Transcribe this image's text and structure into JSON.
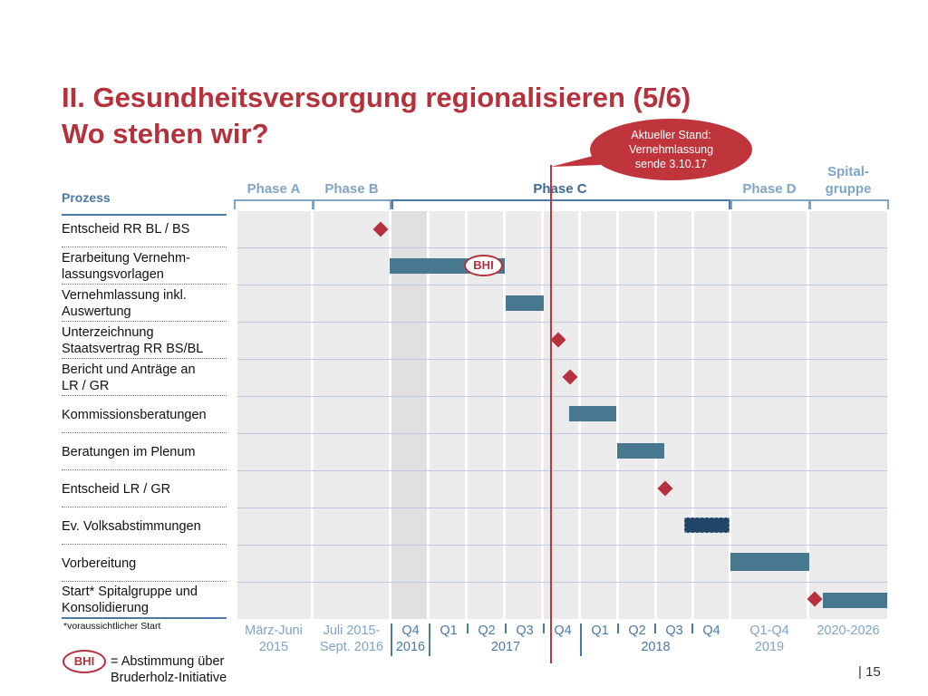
{
  "title": {
    "line1": "II. Gesundheitsversorgung regionalisieren (5/6)",
    "line2": "Wo stehen wir?"
  },
  "callout": {
    "line1": "Aktueller Stand:",
    "line2": "Vernehmlassung",
    "line3": "sende  3.10.17"
  },
  "prozess_header": "Prozess",
  "phases": [
    {
      "label": "Phase A"
    },
    {
      "label": "Phase B"
    },
    {
      "label": "Phase C"
    },
    {
      "label": "Phase D"
    },
    {
      "label": "Spital-\ngruppe"
    }
  ],
  "rows": [
    {
      "label": "Entscheid RR BL / BS"
    },
    {
      "label": "Erarbeitung Vernehm-\nlassungsvorlagen"
    },
    {
      "label": "Vernehmlassung inkl.\nAuswertung"
    },
    {
      "label": "Unterzeichnung\nStaatsvertrag RR BS/BL"
    },
    {
      "label": "Bericht und Anträge an\nLR / GR"
    },
    {
      "label": "Kommissionsberatungen"
    },
    {
      "label": "Beratungen im Plenum"
    },
    {
      "label": "Entscheid LR / GR"
    },
    {
      "label": "Ev. Volksabstimmungen"
    },
    {
      "label": "Vorbereitung"
    },
    {
      "label": "Start* Spitalgruppe und\nKonsolidierung"
    }
  ],
  "bhi_tag": "BHI",
  "timeline": {
    "periods": [
      {
        "label": "März-Juni\n2015"
      },
      {
        "label": "Juli 2015-\nSept. 2016"
      },
      {
        "label": "Q4"
      },
      {
        "label": "Q1"
      },
      {
        "label": "Q2"
      },
      {
        "label": "Q3"
      },
      {
        "label": "Q4"
      },
      {
        "label": "Q1"
      },
      {
        "label": "Q2"
      },
      {
        "label": "Q3"
      },
      {
        "label": "Q4"
      },
      {
        "label": "Q1-Q4\n2019"
      },
      {
        "label": "2020-2026"
      }
    ],
    "years": [
      {
        "label": "2016"
      },
      {
        "label": "2017"
      },
      {
        "label": "2018"
      }
    ]
  },
  "footnote": "*voraussichtlicher Start",
  "legend": {
    "tag": "BHI",
    "text": "= Abstimmung über\nBruderholz-Initiative"
  },
  "page_number": "|  15",
  "colors": {
    "accent_red": "#b5313b",
    "bar_blue": "#48788f",
    "phase_blue": "#7fa4c6",
    "grid_bg": "#ebebeb"
  }
}
